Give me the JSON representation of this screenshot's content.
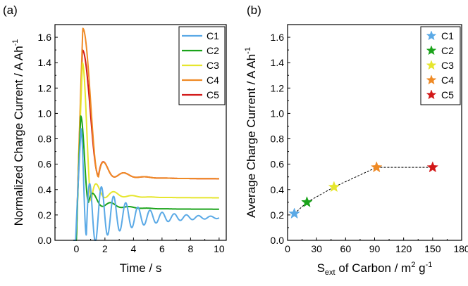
{
  "chart_data": [
    {
      "panel": "(a)",
      "type": "line",
      "xlabel": "Time / s",
      "ylabel_main": "Normalized Charge Current / A Ah",
      "ylabel_sup": "-1",
      "xlim": [
        -1.5,
        10.5
      ],
      "ylim": [
        0,
        1.7
      ],
      "xticks": [
        0,
        2,
        4,
        6,
        8,
        10
      ],
      "yticks": [
        0.0,
        0.2,
        0.4,
        0.6,
        0.8,
        1.0,
        1.2,
        1.4,
        1.6
      ],
      "ytick_labels": [
        "0.0",
        "0.2",
        "0.4",
        "0.6",
        "0.8",
        "1.0",
        "1.2",
        "1.4",
        "1.6"
      ],
      "legend_position": "top-right",
      "series": [
        {
          "name": "C1",
          "color": "#5aa9e6",
          "start": -0.05,
          "peak_t": 0.32,
          "peak": 0.88,
          "fall_end": 0.7,
          "fall_val": 0.04,
          "final": 0.18,
          "decay_to": 0.28,
          "tau_decay": 1.3,
          "osc_amp": 0.3,
          "osc_tau": 2.6,
          "osc_period": 0.85
        },
        {
          "name": "C2",
          "color": "#1aa31a",
          "start": 0.0,
          "peak_t": 0.3,
          "peak": 0.98,
          "fall_end": 0.85,
          "fall_val": 0.3,
          "final": 0.245,
          "decay_to": 0.34,
          "tau_decay": 1.6,
          "osc_amp": 0.07,
          "osc_tau": 1.1,
          "osc_period": 1.3
        },
        {
          "name": "C3",
          "color": "#e6e62e",
          "start": 0.0,
          "peak_t": 0.42,
          "peak": 1.4,
          "fall_end": 1.05,
          "fall_val": 0.31,
          "final": 0.335,
          "decay_to": 0.41,
          "tau_decay": 1.6,
          "osc_amp": 0.1,
          "osc_tau": 1.0,
          "osc_period": 1.3
        },
        {
          "name": "C4",
          "color": "#ef8a25",
          "start": 0.0,
          "peak_t": 0.45,
          "peak": 1.67,
          "fall_end": 1.55,
          "fall_val": 0.5,
          "final": 0.485,
          "decay_to": 0.58,
          "tau_decay": 1.6,
          "osc_amp": 0.1,
          "osc_tau": 1.0,
          "osc_period": 1.5
        },
        {
          "name": "C5",
          "color": "#d21818",
          "start": 0.0,
          "peak_t": 0.42,
          "peak": 1.5,
          "fall_end": 1.55,
          "fall_val": 0.51,
          "final": 0.485,
          "decay_to": 0.58,
          "tau_decay": 1.6,
          "osc_amp": 0.1,
          "osc_tau": 1.0,
          "osc_period": 1.5
        }
      ]
    },
    {
      "panel": "(b)",
      "type": "scatter",
      "xlabel_pre": "S",
      "xlabel_sub": "ext",
      "xlabel_mid": " of Carbon / m",
      "xlabel_sup1": "2",
      "xlabel_mid2": " g",
      "xlabel_sup2": "-1",
      "ylabel_main": "Average Charge Current / A Ah",
      "ylabel_sup": "-1",
      "xlim": [
        0,
        180
      ],
      "ylim": [
        0,
        1.7
      ],
      "xticks": [
        0,
        30,
        60,
        90,
        120,
        150,
        180
      ],
      "yticks": [
        0.0,
        0.2,
        0.4,
        0.6,
        0.8,
        1.0,
        1.2,
        1.4,
        1.6
      ],
      "ytick_labels": [
        "0.0",
        "0.2",
        "0.4",
        "0.6",
        "0.8",
        "1.0",
        "1.2",
        "1.4",
        "1.6"
      ],
      "legend_position": "top-right",
      "connector": "dashed",
      "points": [
        {
          "name": "C1",
          "x": 7,
          "y": 0.21,
          "color": "#5aa9e6"
        },
        {
          "name": "C2",
          "x": 20,
          "y": 0.3,
          "color": "#1aa31a"
        },
        {
          "name": "C3",
          "x": 48,
          "y": 0.42,
          "color": "#e6e62e"
        },
        {
          "name": "C4",
          "x": 92,
          "y": 0.575,
          "color": "#ef8a25"
        },
        {
          "name": "C5",
          "x": 150,
          "y": 0.575,
          "color": "#d21818"
        }
      ]
    }
  ]
}
